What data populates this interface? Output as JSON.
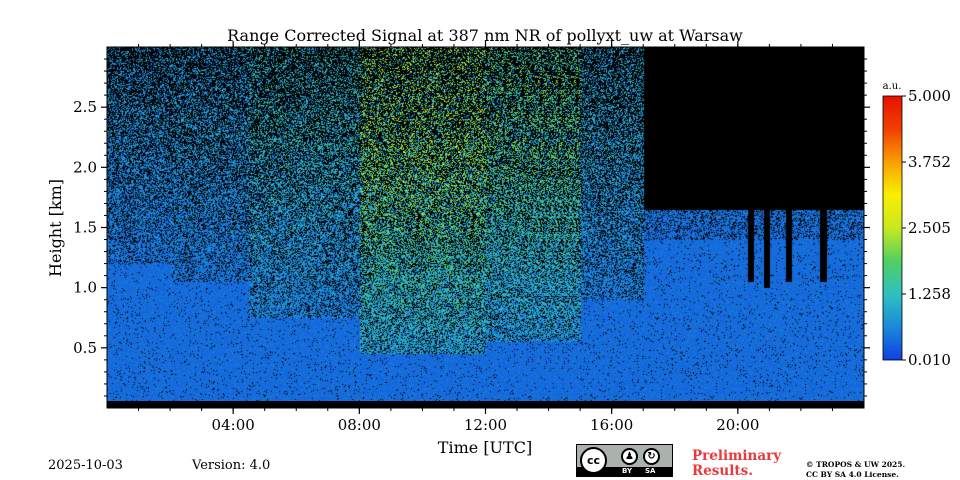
{
  "chart_data": {
    "type": "heatmap",
    "title": "Range Corrected Signal at 387 nm NR of pollyxt_uw at Warsaw",
    "xlabel": "Time [UTC]",
    "ylabel": "Height [km]",
    "xlim_hours": [
      0,
      24
    ],
    "ylim_km": [
      0,
      3.0
    ],
    "x_ticks": [
      {
        "value": 4,
        "label": "04:00"
      },
      {
        "value": 8,
        "label": "08:00"
      },
      {
        "value": 12,
        "label": "12:00"
      },
      {
        "value": 16,
        "label": "16:00"
      },
      {
        "value": 20,
        "label": "20:00"
      }
    ],
    "y_ticks": [
      {
        "value": 0.5,
        "label": "0.5"
      },
      {
        "value": 1.0,
        "label": "1.0"
      },
      {
        "value": 1.5,
        "label": "1.5"
      },
      {
        "value": 2.0,
        "label": "2.0"
      },
      {
        "value": 2.5,
        "label": "2.5"
      }
    ],
    "colorbar": {
      "unit": "a.u.",
      "range": [
        0.01,
        5.0
      ],
      "ticks": [
        {
          "value": 0.01,
          "label": "0.010"
        },
        {
          "value": 1.258,
          "label": "1.258"
        },
        {
          "value": 2.505,
          "label": "2.505"
        },
        {
          "value": 3.752,
          "label": "3.752"
        },
        {
          "value": 5.0,
          "label": "5.000"
        }
      ],
      "colors": [
        "#1040e0",
        "#1a8ad8",
        "#30c0c0",
        "#50d060",
        "#c8e820",
        "#f8f000",
        "#f8a000",
        "#f04000",
        "#e81000"
      ]
    },
    "segments": [
      {
        "start": 0.0,
        "end": 2.0,
        "noise_top_km": 1.2,
        "peak": 0.9
      },
      {
        "start": 2.0,
        "end": 4.5,
        "noise_top_km": 1.05,
        "peak": 1.0
      },
      {
        "start": 4.5,
        "end": 8.0,
        "noise_top_km": 0.75,
        "peak": 1.5
      },
      {
        "start": 8.0,
        "end": 12.0,
        "noise_top_km": 0.45,
        "peak": 2.8
      },
      {
        "start": 12.0,
        "end": 15.0,
        "noise_top_km": 0.55,
        "peak": 2.3
      },
      {
        "start": 15.0,
        "end": 17.0,
        "noise_top_km": 0.9,
        "peak": 1.2
      },
      {
        "start": 17.0,
        "end": 24.0,
        "noise_top_km": 1.4,
        "peak": 0.7,
        "no_data_above_km": 1.65
      }
    ],
    "gaps": [
      {
        "start": 20.3,
        "end": 20.5,
        "down_to_km": 1.05
      },
      {
        "start": 20.8,
        "end": 21.0,
        "down_to_km": 1.0
      },
      {
        "start": 21.5,
        "end": 21.7,
        "down_to_km": 1.05
      },
      {
        "start": 22.6,
        "end": 22.8,
        "down_to_km": 1.05
      }
    ]
  },
  "footer": {
    "date": "2025-10-03",
    "version": "Version: 4.0",
    "preliminary_line1": "Preliminary",
    "preliminary_line2": "Results.",
    "copyright_line1": "© TROPOS & UW 2025.",
    "copyright_line2": "CC BY SA 4.0 License."
  },
  "license_badge": {
    "cc": "cc",
    "by": "BY",
    "sa": "SA"
  }
}
